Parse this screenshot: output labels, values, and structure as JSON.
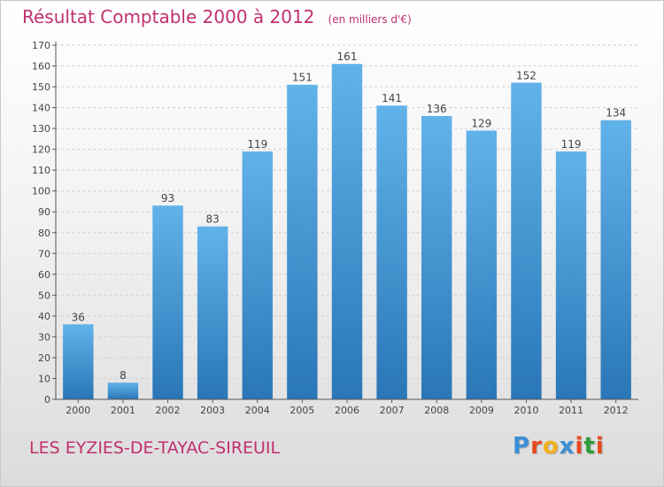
{
  "title": "Résultat Comptable 2000 à 2012",
  "unit": "(en milliers d'€)",
  "commune": "LES EYZIES-DE-TAYAC-SIREUIL",
  "logo": {
    "text": "Proxiti",
    "colors": [
      "#3b8fd6",
      "#e84a1c",
      "#f2b01e",
      "#3b8fd6",
      "#e84a1c",
      "#2f9e3a",
      "#e84a1c"
    ]
  },
  "colors": {
    "title": "#c0306f",
    "bar_light": "#5faee6",
    "bar_dark": "#2a78b8",
    "axis": "#555555",
    "grid": "#d0d0d0"
  },
  "chart_data": {
    "type": "bar",
    "title": "Résultat Comptable 2000 à 2012",
    "xlabel": "",
    "ylabel": "(en milliers d'€)",
    "categories": [
      "2000",
      "2001",
      "2002",
      "2003",
      "2004",
      "2005",
      "2006",
      "2007",
      "2008",
      "2009",
      "2010",
      "2011",
      "2012"
    ],
    "values": [
      36,
      8,
      93,
      83,
      119,
      151,
      161,
      141,
      136,
      129,
      152,
      119,
      134
    ],
    "ylim": [
      0,
      170
    ],
    "yticks": [
      0,
      10,
      20,
      30,
      40,
      50,
      60,
      70,
      80,
      90,
      100,
      110,
      120,
      130,
      140,
      150,
      160,
      170
    ],
    "grid": true
  }
}
